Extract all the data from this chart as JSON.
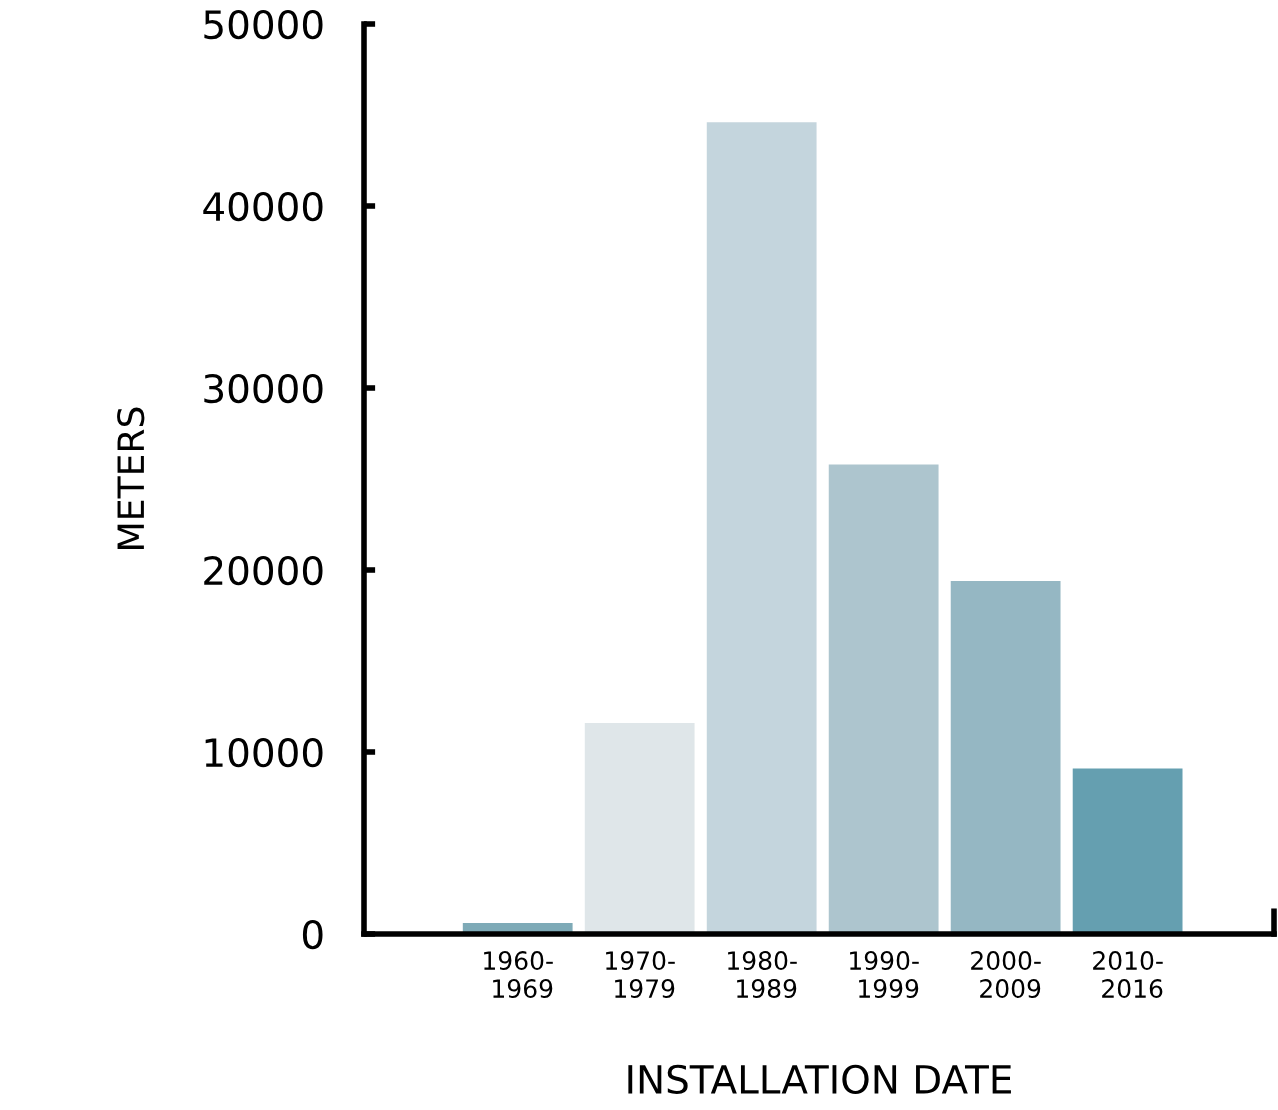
{
  "chart_data": {
    "type": "bar",
    "xlabel": "INSTALLATION DATE",
    "ylabel": "METERS",
    "categories": [
      "1960-\n1969",
      "1970-\n1979",
      "1980-\n1989",
      "1990-\n1999",
      "2000-\n2009",
      "2010-\n2016"
    ],
    "values": [
      600,
      11600,
      44600,
      25800,
      19400,
      9100
    ],
    "colors": [
      "#7eaab7",
      "#dfe6e9",
      "#c4d5dd",
      "#adc5ce",
      "#95b7c3",
      "#659fb0"
    ],
    "ylim": [
      0,
      50000
    ],
    "yticks": [
      0,
      10000,
      20000,
      30000,
      40000,
      50000
    ],
    "grid": false,
    "legend": false
  }
}
